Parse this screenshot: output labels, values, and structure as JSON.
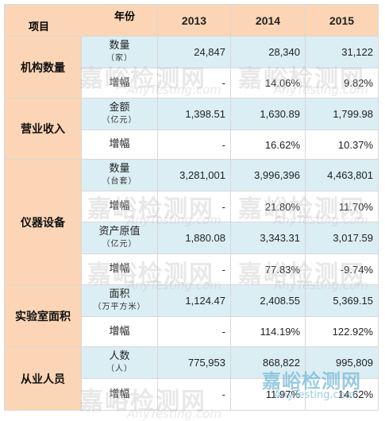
{
  "header": {
    "year_label": "年份",
    "item_label": "项目",
    "years": [
      "2013",
      "2014",
      "2015"
    ]
  },
  "groups": [
    {
      "category": "机构数量",
      "rows": [
        {
          "label": "数量",
          "unit": "（家）",
          "values": [
            "24,847",
            "28,340",
            "31,122"
          ]
        },
        {
          "label": "增幅",
          "unit": "",
          "values": [
            "-",
            "14.06%",
            "9.82%"
          ]
        }
      ]
    },
    {
      "category": "营业收入",
      "rows": [
        {
          "label": "金额",
          "unit": "（亿元）",
          "values": [
            "1,398.51",
            "1,630.89",
            "1,799.98"
          ]
        },
        {
          "label": "增幅",
          "unit": "",
          "values": [
            "-",
            "16.62%",
            "10.37%"
          ]
        }
      ]
    },
    {
      "category": "仪器设备",
      "rows": [
        {
          "label": "数量",
          "unit": "（台套）",
          "values": [
            "3,281,001",
            "3,996,396",
            "4,463,801"
          ]
        },
        {
          "label": "增幅",
          "unit": "",
          "values": [
            "-",
            "21.80%",
            "11.70%"
          ]
        },
        {
          "label": "资产原值",
          "unit": "（亿元）",
          "values": [
            "1,880.08",
            "3,343.31",
            "3,017.59"
          ]
        },
        {
          "label": "增幅",
          "unit": "",
          "values": [
            "-",
            "77.83%",
            "-9.74%"
          ]
        }
      ]
    },
    {
      "category": "实验室面积",
      "rows": [
        {
          "label": "面积",
          "unit": "（万平方米）",
          "values": [
            "1,124.47",
            "2,408.55",
            "5,369.15"
          ]
        },
        {
          "label": "增幅",
          "unit": "",
          "values": [
            "-",
            "114.19%",
            "122.92%"
          ]
        }
      ]
    },
    {
      "category": "从业人员",
      "rows": [
        {
          "label": "人数",
          "unit": "（人）",
          "values": [
            "775,953",
            "868,822",
            "995,809"
          ]
        },
        {
          "label": "增幅",
          "unit": "",
          "values": [
            "-",
            "11.97%",
            "14.62%"
          ]
        }
      ]
    }
  ],
  "watermark": {
    "text": "嘉峪检测网",
    "url": "AnyTesting.com"
  },
  "colors": {
    "header_bg": "#fbd5b5",
    "blue_row_bg": "#dbeef4",
    "white_row_bg": "#ffffff",
    "border": "#d8d8d8"
  }
}
